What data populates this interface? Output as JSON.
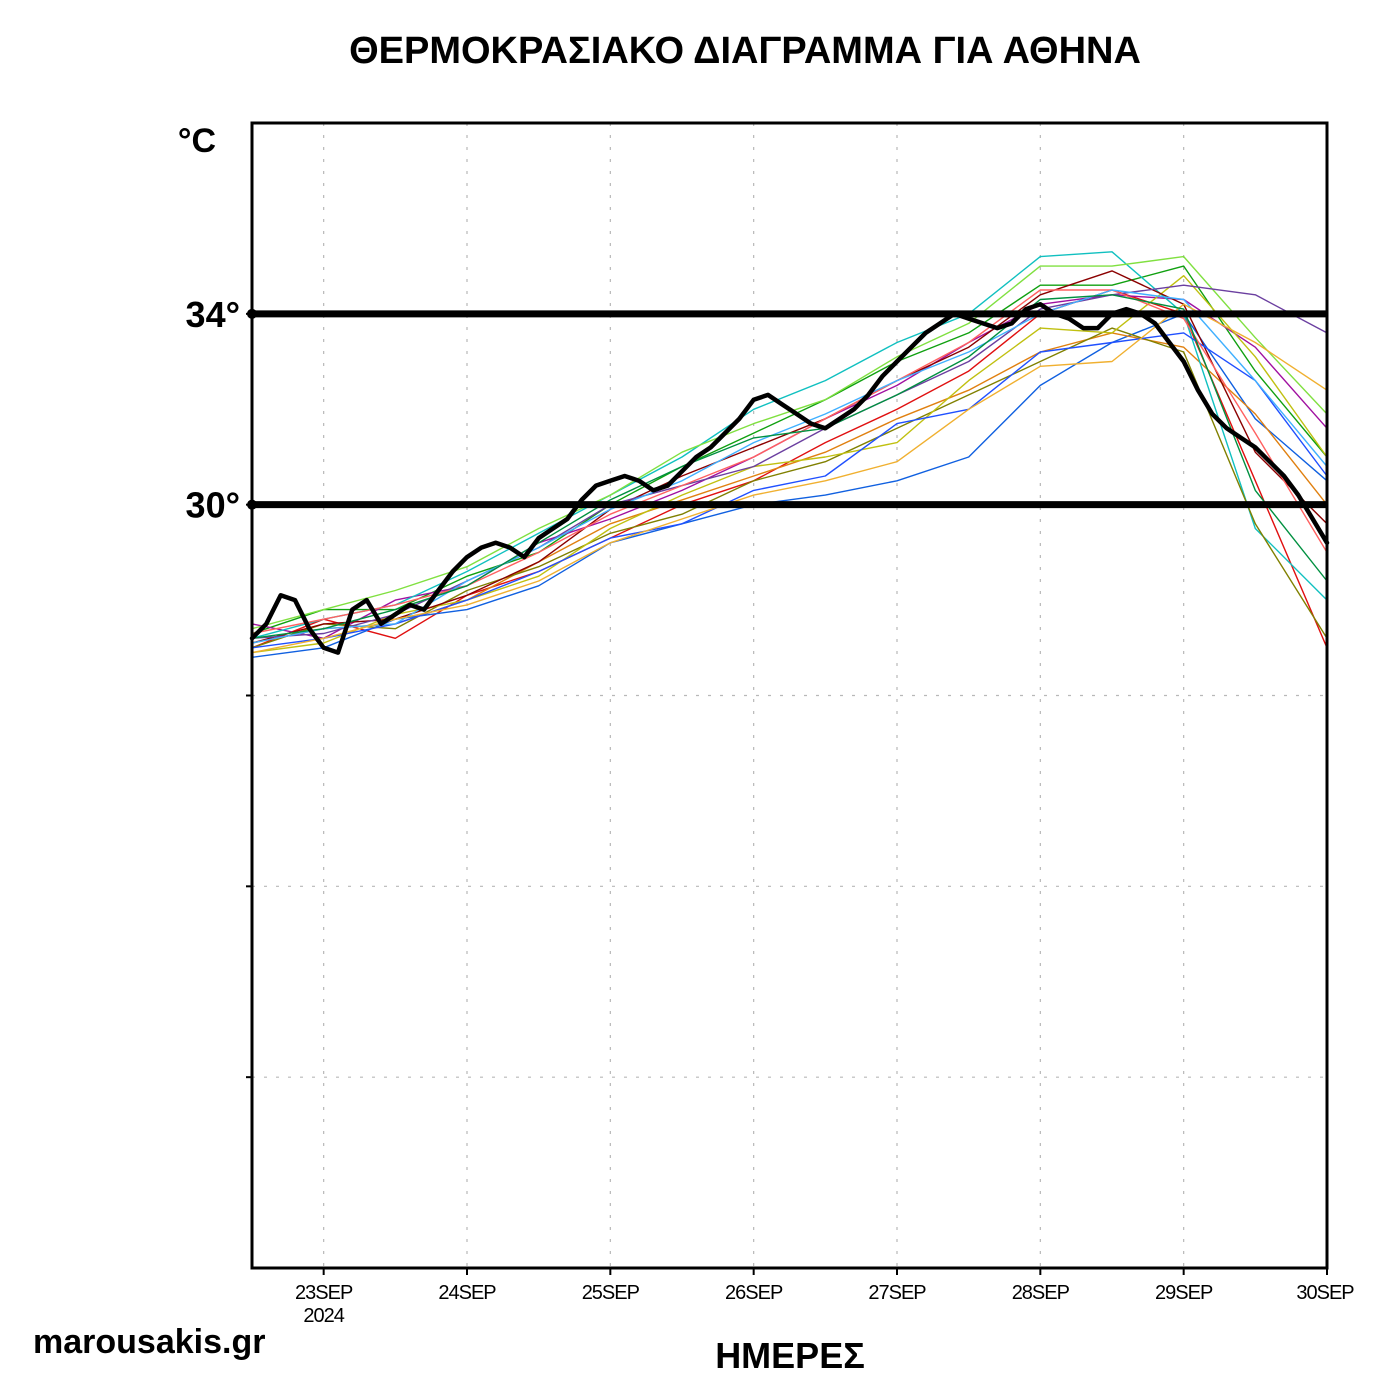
{
  "chart_data": {
    "type": "line",
    "title": "ΘΕΡΜΟΚΡΑΣΙΑΚΟ ΔΙΑΓΡΑΜΜΑ ΓΙΑ ΑΘΗΝΑ",
    "ylabel": "°C",
    "xlabel": "ΗΜΕΡΕΣ",
    "source": "marousakis.gr",
    "x_unit": "days from 23 SEP 2024 00:00",
    "xlim": [
      -0.5,
      7
    ],
    "ylim": [
      14,
      38
    ],
    "x_ticks": [
      {
        "x": 0,
        "label": "23SEP",
        "sub": "2024"
      },
      {
        "x": 1,
        "label": "24SEP",
        "sub": ""
      },
      {
        "x": 2,
        "label": "25SEP",
        "sub": ""
      },
      {
        "x": 3,
        "label": "26SEP",
        "sub": ""
      },
      {
        "x": 4,
        "label": "27SEP",
        "sub": ""
      },
      {
        "x": 5,
        "label": "28SEP",
        "sub": ""
      },
      {
        "x": 6,
        "label": "29SEP",
        "sub": ""
      },
      {
        "x": 7,
        "label": "30SEP",
        "sub": ""
      }
    ],
    "y_grid": [
      18,
      22,
      26,
      30,
      34
    ],
    "reference_lines": [
      {
        "value": 34,
        "label": "34°"
      },
      {
        "value": 30,
        "label": "30°"
      }
    ],
    "mean": {
      "name": "ensemble-mean",
      "color": "#000000",
      "x": [
        -0.5,
        -0.4,
        -0.3,
        -0.2,
        -0.1,
        0,
        0.1,
        0.2,
        0.3,
        0.4,
        0.5,
        0.6,
        0.7,
        0.8,
        0.9,
        1,
        1.1,
        1.2,
        1.3,
        1.4,
        1.5,
        1.6,
        1.7,
        1.8,
        1.9,
        2,
        2.1,
        2.2,
        2.3,
        2.4,
        2.5,
        2.6,
        2.7,
        2.8,
        2.9,
        3,
        3.1,
        3.2,
        3.3,
        3.4,
        3.5,
        3.6,
        3.7,
        3.8,
        3.9,
        4,
        4.1,
        4.2,
        4.3,
        4.4,
        4.5,
        4.6,
        4.7,
        4.8,
        4.9,
        5,
        5.1,
        5.2,
        5.3,
        5.4,
        5.5,
        5.6,
        5.7,
        5.8,
        5.9,
        6,
        6.1,
        6.2,
        6.3,
        6.4,
        6.5,
        6.6,
        6.7,
        6.8,
        6.9,
        7
      ],
      "y": [
        27.2,
        27.5,
        28.1,
        28.0,
        27.4,
        27.0,
        26.9,
        27.8,
        28.0,
        27.5,
        27.7,
        27.9,
        27.8,
        28.2,
        28.6,
        28.9,
        29.1,
        29.2,
        29.1,
        28.9,
        29.3,
        29.5,
        29.7,
        30.1,
        30.4,
        30.5,
        30.6,
        30.5,
        30.3,
        30.4,
        30.7,
        31.0,
        31.2,
        31.5,
        31.8,
        32.2,
        32.3,
        32.1,
        31.9,
        31.7,
        31.6,
        31.8,
        32.0,
        32.3,
        32.7,
        33.0,
        33.3,
        33.6,
        33.8,
        34.0,
        33.9,
        33.8,
        33.7,
        33.8,
        34.1,
        34.2,
        34.0,
        33.9,
        33.7,
        33.7,
        34.0,
        34.1,
        34.0,
        33.8,
        33.4,
        33.0,
        32.4,
        31.9,
        31.6,
        31.4,
        31.2,
        30.9,
        30.6,
        30.2,
        29.7,
        29.2
      ]
    },
    "members_x": [
      -0.5,
      0,
      0.5,
      1,
      1.5,
      2,
      2.5,
      3,
      3.5,
      4,
      4.5,
      5,
      5.5,
      6,
      6.5,
      7
    ],
    "members": [
      {
        "color": "#e01010",
        "y": [
          27.0,
          27.6,
          27.2,
          28.1,
          28.6,
          29.3,
          30.0,
          30.5,
          31.3,
          32.0,
          32.8,
          34.0,
          34.5,
          34.0,
          30.5,
          27.0
        ]
      },
      {
        "color": "#1060e0",
        "y": [
          26.8,
          27.0,
          27.6,
          27.8,
          28.3,
          29.2,
          29.6,
          30.0,
          30.2,
          30.5,
          31.0,
          32.5,
          33.4,
          34.0,
          31.8,
          30.5
        ]
      },
      {
        "color": "#10a010",
        "y": [
          27.3,
          27.8,
          27.8,
          28.5,
          29.0,
          30.0,
          30.8,
          31.5,
          32.2,
          33.0,
          33.6,
          34.6,
          34.6,
          35.0,
          32.8,
          31.0
        ]
      },
      {
        "color": "#e08010",
        "y": [
          27.1,
          27.4,
          27.5,
          28.0,
          28.8,
          29.6,
          30.1,
          30.6,
          31.1,
          31.8,
          32.4,
          33.2,
          33.6,
          33.3,
          31.9,
          30.0
        ]
      },
      {
        "color": "#a010a0",
        "y": [
          27.5,
          27.2,
          28.0,
          28.3,
          29.2,
          29.7,
          30.3,
          31.0,
          31.8,
          32.5,
          33.4,
          34.2,
          34.4,
          34.3,
          33.3,
          31.6
        ]
      },
      {
        "color": "#10c0c0",
        "y": [
          27.2,
          27.6,
          27.9,
          28.6,
          29.4,
          30.2,
          31.0,
          32.0,
          32.6,
          33.4,
          34.0,
          35.2,
          35.3,
          34.0,
          29.5,
          28.0
        ]
      },
      {
        "color": "#808000",
        "y": [
          27.0,
          27.5,
          27.4,
          28.2,
          28.7,
          29.4,
          29.8,
          30.5,
          30.9,
          31.6,
          32.3,
          33.0,
          33.7,
          33.2,
          29.6,
          27.2
        ]
      },
      {
        "color": "#c0c010",
        "y": [
          26.9,
          27.1,
          27.7,
          28.0,
          28.5,
          29.5,
          30.2,
          30.8,
          31.0,
          31.3,
          32.6,
          33.7,
          33.6,
          34.8,
          33.1,
          31.0
        ]
      },
      {
        "color": "#80e040",
        "y": [
          27.4,
          27.8,
          28.2,
          28.7,
          29.5,
          30.2,
          31.1,
          31.7,
          32.2,
          33.1,
          33.8,
          35.0,
          35.0,
          35.2,
          33.5,
          31.9
        ]
      },
      {
        "color": "#8b0000",
        "y": [
          27.1,
          27.5,
          27.6,
          28.1,
          28.8,
          29.9,
          30.6,
          31.2,
          31.8,
          32.6,
          33.3,
          34.4,
          34.9,
          34.2,
          31.1,
          29.6
        ]
      },
      {
        "color": "#6b3fa0",
        "y": [
          27.2,
          27.3,
          27.7,
          28.4,
          29.1,
          30.0,
          30.4,
          30.8,
          31.6,
          32.3,
          33.0,
          34.1,
          34.4,
          34.6,
          34.4,
          33.6
        ]
      },
      {
        "color": "#2050ff",
        "y": [
          27.0,
          27.2,
          27.5,
          28.0,
          28.6,
          29.3,
          29.6,
          30.3,
          30.6,
          31.7,
          32.0,
          33.2,
          33.4,
          33.6,
          32.6,
          30.6
        ]
      },
      {
        "color": "#ff6060",
        "y": [
          27.3,
          27.6,
          27.9,
          28.3,
          29.0,
          29.8,
          30.4,
          31.0,
          31.8,
          32.6,
          33.4,
          34.5,
          34.5,
          33.9,
          31.5,
          29.0
        ]
      },
      {
        "color": "#40b0ff",
        "y": [
          27.1,
          27.4,
          27.5,
          28.4,
          29.1,
          29.9,
          30.5,
          31.3,
          31.9,
          32.6,
          33.2,
          34.0,
          34.5,
          34.3,
          32.6,
          30.8
        ]
      },
      {
        "color": "#f0b030",
        "y": [
          26.9,
          27.2,
          27.6,
          27.9,
          28.4,
          29.2,
          29.7,
          30.2,
          30.5,
          30.9,
          32.0,
          32.9,
          33.0,
          34.2,
          33.4,
          32.4
        ]
      },
      {
        "color": "#009040",
        "y": [
          27.2,
          27.4,
          27.8,
          28.3,
          29.2,
          30.1,
          30.8,
          31.4,
          31.6,
          32.3,
          33.1,
          34.3,
          34.4,
          34.1,
          30.3,
          28.4
        ]
      }
    ]
  }
}
